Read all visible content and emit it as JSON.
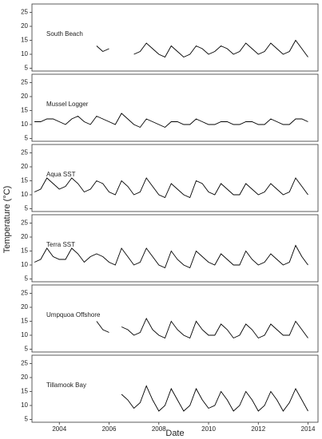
{
  "chart_data": [
    {
      "type": "line",
      "annotation": "South Beach",
      "color": "#000000",
      "xlim": [
        2002.9,
        2014.4
      ],
      "ylim": [
        4,
        28
      ],
      "yticks": [
        5,
        10,
        15,
        20,
        25
      ],
      "x": [
        2003,
        2003.25,
        2003.5,
        2003.75,
        2004,
        2004.25,
        2004.5,
        2004.75,
        2005,
        2005.25,
        2005.5,
        2005.75,
        2006,
        2006.25,
        2006.5,
        2006.75,
        2007,
        2007.25,
        2007.5,
        2007.75,
        2008,
        2008.25,
        2008.5,
        2008.75,
        2009,
        2009.25,
        2009.5,
        2009.75,
        2010,
        2010.25,
        2010.5,
        2010.75,
        2011,
        2011.25,
        2011.5,
        2011.75,
        2012,
        2012.25,
        2012.5,
        2012.75,
        2013,
        2013.25,
        2013.5,
        2013.75,
        2014
      ],
      "values": [
        null,
        null,
        null,
        null,
        null,
        null,
        null,
        null,
        null,
        null,
        13,
        11,
        12,
        null,
        null,
        null,
        10,
        11,
        14,
        12,
        10,
        9,
        13,
        11,
        9,
        10,
        13,
        12,
        10,
        11,
        13,
        12,
        10,
        11,
        14,
        12,
        10,
        11,
        14,
        12,
        10,
        11,
        15,
        12,
        9
      ]
    },
    {
      "type": "line",
      "annotation": "Mussel Logger",
      "color": "#000000",
      "xlim": [
        2002.9,
        2014.4
      ],
      "ylim": [
        4,
        28
      ],
      "yticks": [
        5,
        10,
        15,
        20,
        25
      ],
      "x": [
        2003,
        2003.25,
        2003.5,
        2003.75,
        2004,
        2004.25,
        2004.5,
        2004.75,
        2005,
        2005.25,
        2005.5,
        2005.75,
        2006,
        2006.25,
        2006.5,
        2006.75,
        2007,
        2007.25,
        2007.5,
        2007.75,
        2008,
        2008.25,
        2008.5,
        2008.75,
        2009,
        2009.25,
        2009.5,
        2009.75,
        2010,
        2010.25,
        2010.5,
        2010.75,
        2011,
        2011.25,
        2011.5,
        2011.75,
        2012,
        2012.25,
        2012.5,
        2012.75,
        2013,
        2013.25,
        2013.5,
        2013.75,
        2014
      ],
      "values": [
        11,
        11,
        12,
        12,
        11,
        10,
        12,
        13,
        11,
        10,
        13,
        12,
        11,
        10,
        14,
        12,
        10,
        9,
        12,
        11,
        10,
        9,
        11,
        11,
        10,
        10,
        12,
        11,
        10,
        10,
        11,
        11,
        10,
        10,
        11,
        11,
        10,
        10,
        12,
        11,
        10,
        10,
        12,
        12,
        11
      ]
    },
    {
      "type": "line",
      "annotation": "Aqua SST",
      "ylabel": "Temperature (°C)",
      "color": "#000000",
      "xlim": [
        2002.9,
        2014.4
      ],
      "ylim": [
        4,
        28
      ],
      "yticks": [
        5,
        10,
        15,
        20,
        25
      ],
      "x": [
        2003,
        2003.25,
        2003.5,
        2003.75,
        2004,
        2004.25,
        2004.5,
        2004.75,
        2005,
        2005.25,
        2005.5,
        2005.75,
        2006,
        2006.25,
        2006.5,
        2006.75,
        2007,
        2007.25,
        2007.5,
        2007.75,
        2008,
        2008.25,
        2008.5,
        2008.75,
        2009,
        2009.25,
        2009.5,
        2009.75,
        2010,
        2010.25,
        2010.5,
        2010.75,
        2011,
        2011.25,
        2011.5,
        2011.75,
        2012,
        2012.25,
        2012.5,
        2012.75,
        2013,
        2013.25,
        2013.5,
        2013.75,
        2014
      ],
      "values": [
        11,
        12,
        16,
        14,
        12,
        13,
        16,
        14,
        11,
        12,
        15,
        14,
        11,
        10,
        15,
        13,
        10,
        11,
        16,
        13,
        10,
        9,
        14,
        12,
        10,
        9,
        15,
        14,
        11,
        10,
        14,
        12,
        10,
        10,
        14,
        12,
        10,
        11,
        14,
        12,
        10,
        11,
        16,
        13,
        10
      ]
    },
    {
      "type": "line",
      "annotation": "Terra SST",
      "color": "#000000",
      "xlim": [
        2002.9,
        2014.4
      ],
      "ylim": [
        4,
        28
      ],
      "yticks": [
        5,
        10,
        15,
        20,
        25
      ],
      "x": [
        2003,
        2003.25,
        2003.5,
        2003.75,
        2004,
        2004.25,
        2004.5,
        2004.75,
        2005,
        2005.25,
        2005.5,
        2005.75,
        2006,
        2006.25,
        2006.5,
        2006.75,
        2007,
        2007.25,
        2007.5,
        2007.75,
        2008,
        2008.25,
        2008.5,
        2008.75,
        2009,
        2009.25,
        2009.5,
        2009.75,
        2010,
        2010.25,
        2010.5,
        2010.75,
        2011,
        2011.25,
        2011.5,
        2011.75,
        2012,
        2012.25,
        2012.5,
        2012.75,
        2013,
        2013.25,
        2013.5,
        2013.75,
        2014
      ],
      "values": [
        11,
        12,
        16,
        13,
        12,
        12,
        16,
        14,
        11,
        13,
        14,
        13,
        11,
        10,
        16,
        13,
        10,
        11,
        16,
        13,
        10,
        9,
        15,
        12,
        10,
        9,
        15,
        13,
        11,
        10,
        14,
        12,
        10,
        10,
        15,
        12,
        10,
        11,
        14,
        12,
        10,
        11,
        17,
        13,
        10
      ]
    },
    {
      "type": "line",
      "annotation": "Umpquoa Offshore",
      "color": "#000000",
      "xlim": [
        2002.9,
        2014.4
      ],
      "ylim": [
        4,
        28
      ],
      "yticks": [
        5,
        10,
        15,
        20,
        25
      ],
      "x": [
        2003,
        2003.25,
        2003.5,
        2003.75,
        2004,
        2004.25,
        2004.5,
        2004.75,
        2005,
        2005.25,
        2005.5,
        2005.75,
        2006,
        2006.25,
        2006.5,
        2006.75,
        2007,
        2007.25,
        2007.5,
        2007.75,
        2008,
        2008.25,
        2008.5,
        2008.75,
        2009,
        2009.25,
        2009.5,
        2009.75,
        2010,
        2010.25,
        2010.5,
        2010.75,
        2011,
        2011.25,
        2011.5,
        2011.75,
        2012,
        2012.25,
        2012.5,
        2012.75,
        2013,
        2013.25,
        2013.5,
        2013.75,
        2014
      ],
      "values": [
        null,
        null,
        null,
        null,
        null,
        null,
        null,
        null,
        null,
        null,
        15,
        12,
        11,
        null,
        13,
        12,
        10,
        11,
        16,
        12,
        10,
        9,
        15,
        12,
        10,
        9,
        15,
        12,
        10,
        10,
        14,
        12,
        9,
        10,
        14,
        12,
        9,
        10,
        14,
        12,
        10,
        10,
        15,
        12,
        9
      ]
    },
    {
      "type": "line",
      "annotation": "Tillamook Bay",
      "xlabel": "Date",
      "color": "#000000",
      "xlim": [
        2002.9,
        2014.4
      ],
      "ylim": [
        4,
        28
      ],
      "yticks": [
        5,
        10,
        15,
        20,
        25
      ],
      "xticks": [
        2004,
        2006,
        2008,
        2010,
        2012,
        2014
      ],
      "x": [
        2003,
        2003.25,
        2003.5,
        2003.75,
        2004,
        2004.25,
        2004.5,
        2004.75,
        2005,
        2005.25,
        2005.5,
        2005.75,
        2006,
        2006.25,
        2006.5,
        2006.75,
        2007,
        2007.25,
        2007.5,
        2007.75,
        2008,
        2008.25,
        2008.5,
        2008.75,
        2009,
        2009.25,
        2009.5,
        2009.75,
        2010,
        2010.25,
        2010.5,
        2010.75,
        2011,
        2011.25,
        2011.5,
        2011.75,
        2012,
        2012.25,
        2012.5,
        2012.75,
        2013,
        2013.25,
        2013.5,
        2013.75,
        2014
      ],
      "values": [
        null,
        null,
        null,
        null,
        null,
        null,
        null,
        null,
        null,
        null,
        null,
        null,
        null,
        null,
        14,
        12,
        9,
        11,
        17,
        12,
        8,
        10,
        16,
        12,
        8,
        10,
        16,
        12,
        9,
        10,
        15,
        12,
        8,
        10,
        15,
        12,
        8,
        10,
        15,
        12,
        8,
        11,
        16,
        12,
        8
      ]
    }
  ]
}
